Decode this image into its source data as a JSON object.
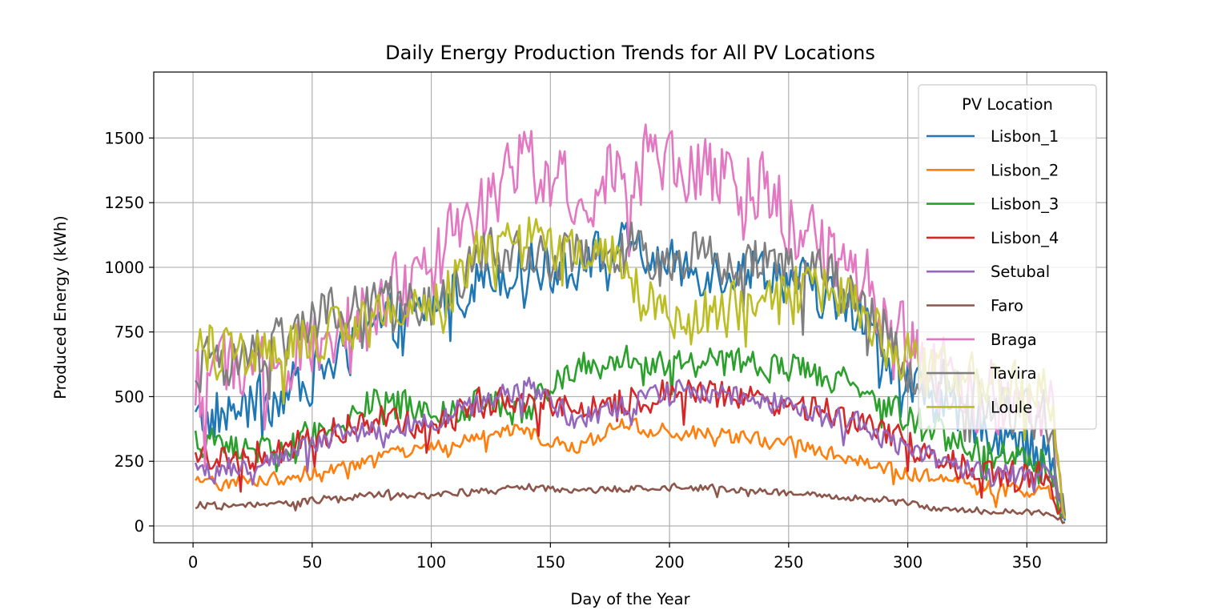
{
  "chart_data": {
    "type": "line",
    "title": "Daily Energy Production Trends for All PV Locations",
    "xlabel": "Day of the Year",
    "ylabel": "Produced Energy (kWh)",
    "xlim": [
      -16.5,
      383.5
    ],
    "ylim": [
      -65,
      1755
    ],
    "xticks": [
      0,
      50,
      100,
      150,
      200,
      250,
      300,
      350
    ],
    "yticks": [
      0,
      250,
      500,
      750,
      1000,
      1250,
      1500
    ],
    "grid": true,
    "legend": {
      "title": "PV Location",
      "position": "top-right"
    },
    "x_range": [
      1,
      366
    ],
    "series": [
      {
        "name": "Lisbon_1",
        "color": "#1f77b4",
        "noise": 95,
        "points": [
          [
            1,
            400
          ],
          [
            20,
            450
          ],
          [
            40,
            520
          ],
          [
            60,
            640
          ],
          [
            80,
            780
          ],
          [
            100,
            840
          ],
          [
            120,
            960
          ],
          [
            140,
            1000
          ],
          [
            160,
            1010
          ],
          [
            180,
            1080
          ],
          [
            200,
            1000
          ],
          [
            220,
            990
          ],
          [
            240,
            1000
          ],
          [
            260,
            920
          ],
          [
            280,
            800
          ],
          [
            300,
            560
          ],
          [
            320,
            430
          ],
          [
            340,
            360
          ],
          [
            360,
            260
          ],
          [
            366,
            20
          ]
        ]
      },
      {
        "name": "Lisbon_2",
        "color": "#ff7f0e",
        "noise": 28,
        "points": [
          [
            1,
            160
          ],
          [
            20,
            175
          ],
          [
            40,
            190
          ],
          [
            60,
            225
          ],
          [
            80,
            265
          ],
          [
            100,
            300
          ],
          [
            120,
            345
          ],
          [
            140,
            370
          ],
          [
            150,
            330
          ],
          [
            160,
            300
          ],
          [
            180,
            390
          ],
          [
            200,
            365
          ],
          [
            220,
            350
          ],
          [
            240,
            330
          ],
          [
            260,
            300
          ],
          [
            280,
            260
          ],
          [
            300,
            205
          ],
          [
            320,
            170
          ],
          [
            340,
            140
          ],
          [
            360,
            125
          ],
          [
            366,
            30
          ]
        ]
      },
      {
        "name": "Lisbon_3",
        "color": "#2ca02c",
        "noise": 55,
        "points": [
          [
            1,
            330
          ],
          [
            20,
            300
          ],
          [
            40,
            310
          ],
          [
            60,
            400
          ],
          [
            80,
            510
          ],
          [
            100,
            420
          ],
          [
            120,
            470
          ],
          [
            140,
            440
          ],
          [
            160,
            620
          ],
          [
            180,
            640
          ],
          [
            200,
            640
          ],
          [
            220,
            630
          ],
          [
            240,
            620
          ],
          [
            260,
            600
          ],
          [
            280,
            540
          ],
          [
            300,
            420
          ],
          [
            320,
            330
          ],
          [
            340,
            270
          ],
          [
            360,
            240
          ],
          [
            366,
            35
          ]
        ]
      },
      {
        "name": "Lisbon_4",
        "color": "#d62728",
        "noise": 55,
        "points": [
          [
            1,
            270
          ],
          [
            20,
            260
          ],
          [
            40,
            300
          ],
          [
            60,
            380
          ],
          [
            80,
            420
          ],
          [
            100,
            400
          ],
          [
            120,
            470
          ],
          [
            140,
            480
          ],
          [
            160,
            470
          ],
          [
            180,
            480
          ],
          [
            200,
            520
          ],
          [
            220,
            500
          ],
          [
            240,
            500
          ],
          [
            260,
            460
          ],
          [
            280,
            400
          ],
          [
            300,
            320
          ],
          [
            320,
            250
          ],
          [
            340,
            200
          ],
          [
            360,
            180
          ],
          [
            366,
            30
          ]
        ]
      },
      {
        "name": "Setubal",
        "color": "#9467bd",
        "noise": 45,
        "points": [
          [
            1,
            200
          ],
          [
            20,
            230
          ],
          [
            40,
            270
          ],
          [
            60,
            350
          ],
          [
            80,
            380
          ],
          [
            100,
            400
          ],
          [
            120,
            470
          ],
          [
            140,
            540
          ],
          [
            160,
            420
          ],
          [
            180,
            460
          ],
          [
            200,
            530
          ],
          [
            220,
            520
          ],
          [
            240,
            500
          ],
          [
            260,
            440
          ],
          [
            280,
            400
          ],
          [
            300,
            290
          ],
          [
            320,
            230
          ],
          [
            340,
            200
          ],
          [
            360,
            190
          ],
          [
            366,
            30
          ]
        ]
      },
      {
        "name": "Faro",
        "color": "#8c564b",
        "noise": 14,
        "points": [
          [
            1,
            80
          ],
          [
            20,
            75
          ],
          [
            40,
            90
          ],
          [
            60,
            110
          ],
          [
            80,
            125
          ],
          [
            100,
            120
          ],
          [
            120,
            135
          ],
          [
            140,
            150
          ],
          [
            160,
            140
          ],
          [
            180,
            145
          ],
          [
            200,
            150
          ],
          [
            220,
            145
          ],
          [
            240,
            135
          ],
          [
            260,
            120
          ],
          [
            280,
            110
          ],
          [
            300,
            85
          ],
          [
            320,
            65
          ],
          [
            340,
            55
          ],
          [
            360,
            50
          ],
          [
            366,
            15
          ]
        ]
      },
      {
        "name": "Braga",
        "color": "#e377c2",
        "noise": 140,
        "points": [
          [
            1,
            570
          ],
          [
            20,
            600
          ],
          [
            40,
            640
          ],
          [
            60,
            760
          ],
          [
            80,
            920
          ],
          [
            100,
            1010
          ],
          [
            120,
            1220
          ],
          [
            140,
            1430
          ],
          [
            160,
            1280
          ],
          [
            180,
            1380
          ],
          [
            200,
            1400
          ],
          [
            220,
            1340
          ],
          [
            240,
            1300
          ],
          [
            260,
            1080
          ],
          [
            280,
            980
          ],
          [
            300,
            680
          ],
          [
            320,
            560
          ],
          [
            340,
            470
          ],
          [
            360,
            440
          ],
          [
            366,
            30
          ]
        ]
      },
      {
        "name": "Tavira",
        "color": "#7f7f7f",
        "noise": 95,
        "points": [
          [
            1,
            620
          ],
          [
            20,
            630
          ],
          [
            40,
            720
          ],
          [
            60,
            860
          ],
          [
            80,
            870
          ],
          [
            100,
            850
          ],
          [
            120,
            1050
          ],
          [
            140,
            1060
          ],
          [
            160,
            1040
          ],
          [
            180,
            1080
          ],
          [
            200,
            1060
          ],
          [
            220,
            1030
          ],
          [
            240,
            1010
          ],
          [
            260,
            980
          ],
          [
            280,
            890
          ],
          [
            300,
            620
          ],
          [
            320,
            540
          ],
          [
            340,
            470
          ],
          [
            360,
            420
          ],
          [
            366,
            40
          ]
        ]
      },
      {
        "name": "Loule",
        "color": "#bcbd22",
        "noise": 95,
        "points": [
          [
            1,
            720
          ],
          [
            20,
            660
          ],
          [
            40,
            700
          ],
          [
            60,
            760
          ],
          [
            80,
            820
          ],
          [
            100,
            840
          ],
          [
            120,
            1080
          ],
          [
            140,
            1120
          ],
          [
            160,
            1030
          ],
          [
            180,
            1060
          ],
          [
            190,
            860
          ],
          [
            200,
            830
          ],
          [
            220,
            820
          ],
          [
            240,
            880
          ],
          [
            260,
            950
          ],
          [
            280,
            840
          ],
          [
            300,
            640
          ],
          [
            320,
            590
          ],
          [
            340,
            540
          ],
          [
            360,
            500
          ],
          [
            366,
            30
          ]
        ]
      }
    ]
  }
}
